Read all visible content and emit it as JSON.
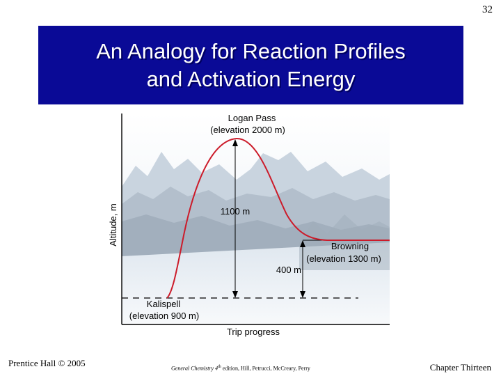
{
  "slide_number": "32",
  "title": {
    "line1": "An Analogy for Reaction Profiles",
    "line2": "and Activation Energy"
  },
  "diagram": {
    "y_axis_label": "Altitude, m",
    "x_axis_label": "Trip progress",
    "peak_label_line1": "Logan Pass",
    "peak_label_line2": "(elevation 2000 m)",
    "start_label_line1": "Kalispell",
    "start_label_line2": "(elevation 900 m)",
    "end_label_line1": "Browning",
    "end_label_line2": "(elevation 1300 m)",
    "activation_label": "1100 m",
    "difference_label": "400 m",
    "curve_color": "#cc1b2a",
    "elevations_m": {
      "start": 900,
      "peak": 2000,
      "end": 1300
    }
  },
  "footer": {
    "left": "Prentice Hall © 2005",
    "center_book": "General Chemistry 4",
    "center_sup": "th",
    "center_rest": " edition, Hill, Petrucci, McCreary, Perry",
    "right": "Chapter Thirteen"
  }
}
